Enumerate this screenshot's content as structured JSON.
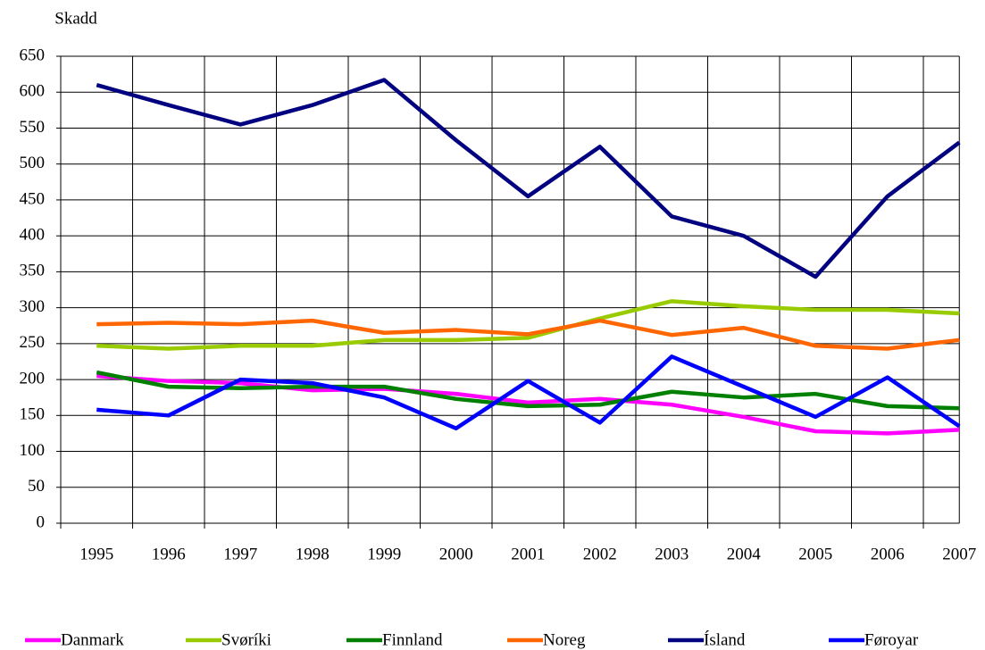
{
  "chart_data": {
    "type": "line",
    "y_label": "Skadd",
    "categories": [
      "1995",
      "1996",
      "1997",
      "1998",
      "1999",
      "2000",
      "2001",
      "2002",
      "2003",
      "2004",
      "2005",
      "2006",
      "2007"
    ],
    "series": [
      {
        "name": "Danmark",
        "color": "#ff00ff",
        "values": [
          205,
          198,
          195,
          185,
          187,
          180,
          168,
          173,
          165,
          148,
          128,
          125,
          130
        ]
      },
      {
        "name": "Svøríki",
        "color": "#99cc00",
        "values": [
          247,
          243,
          247,
          247,
          255,
          255,
          258,
          285,
          309,
          302,
          297,
          297,
          292
        ]
      },
      {
        "name": "Finnland",
        "color": "#008000",
        "values": [
          210,
          190,
          188,
          190,
          190,
          173,
          163,
          165,
          183,
          175,
          180,
          163,
          160
        ]
      },
      {
        "name": "Noreg",
        "color": "#ff6600",
        "values": [
          277,
          279,
          277,
          282,
          265,
          269,
          263,
          282,
          262,
          272,
          247,
          243,
          255
        ]
      },
      {
        "name": "Ísland",
        "color": "#000080",
        "values": [
          610,
          582,
          555,
          582,
          617,
          533,
          455,
          524,
          427,
          400,
          343,
          455,
          530
        ]
      },
      {
        "name": "Føroyar",
        "color": "#0000ff",
        "values": [
          158,
          150,
          200,
          195,
          175,
          132,
          198,
          140,
          232,
          190,
          148,
          203,
          135
        ]
      }
    ],
    "ylim": [
      0,
      650
    ],
    "yticks": [
      0,
      50,
      100,
      150,
      200,
      250,
      300,
      350,
      400,
      450,
      500,
      550,
      600,
      650
    ],
    "grid": true,
    "legend": "bottom"
  }
}
